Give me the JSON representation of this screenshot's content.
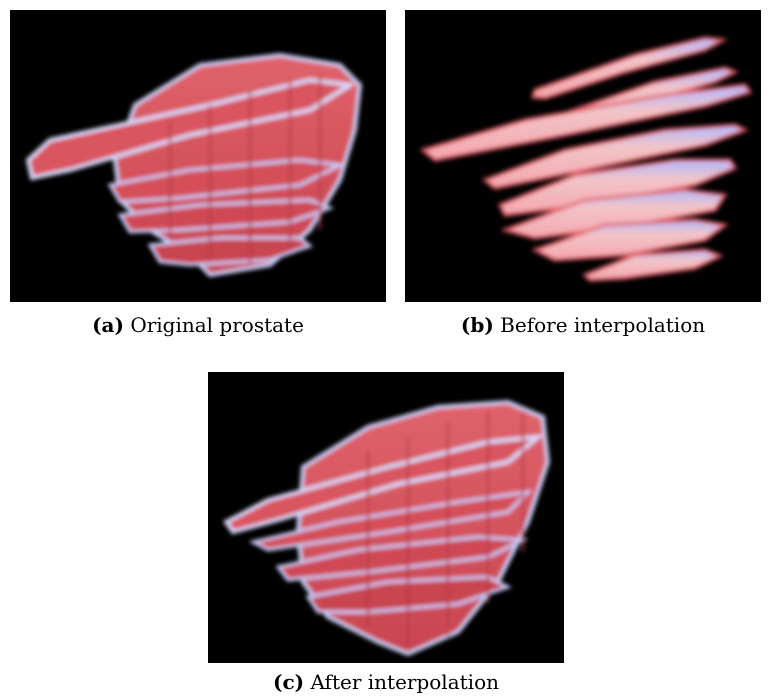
{
  "figure": {
    "panels": [
      {
        "label": "(a)",
        "caption": "Original prostate"
      },
      {
        "label": "(b)",
        "caption": "Before interpolation"
      },
      {
        "label": "(c)",
        "caption": "After interpolation"
      }
    ],
    "colors": {
      "background": "#000000",
      "tissue": "#d9545e",
      "glow": "#b9c3ff",
      "slice_fill": "#f0b3b8"
    }
  }
}
